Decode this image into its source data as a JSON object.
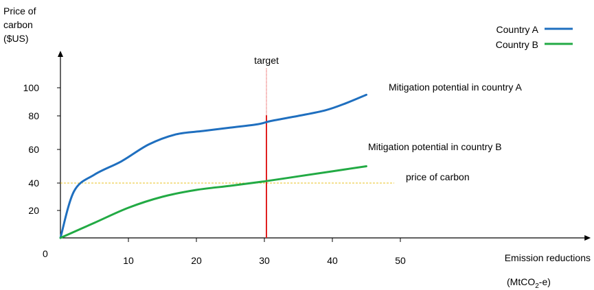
{
  "chart_data": {
    "type": "line",
    "ylabel": [
      "Price of",
      "carbon",
      "($US)"
    ],
    "xlabel": "Emission reductions",
    "xunit_prefix": "(MtCO",
    "xunit_sub": "2",
    "xunit_suffix": "-e)",
    "origin_label": "0",
    "xticks": [
      10,
      20,
      30,
      40,
      50
    ],
    "yticks": [
      20,
      40,
      60,
      80,
      100
    ],
    "xlim": [
      0,
      78
    ],
    "grid": false,
    "legend": "top-right",
    "series": [
      {
        "name": "Country A",
        "color": "#1f6fbf",
        "x": [
          0,
          2,
          5,
          9,
          13,
          17,
          21,
          25,
          29,
          31,
          35,
          39,
          42,
          45
        ],
        "y": [
          0,
          34,
          45,
          53,
          63,
          69,
          71,
          73,
          75,
          77,
          80,
          84,
          89,
          95
        ],
        "annotation": "Mitigation potential in country A"
      },
      {
        "name": "Country B",
        "color": "#22aa44",
        "x": [
          0,
          5,
          10,
          15,
          20,
          25,
          30,
          35,
          40,
          45
        ],
        "y": [
          0,
          11,
          22,
          30,
          35,
          38,
          41,
          44,
          47,
          50
        ],
        "annotation": "Mitigation potential in country B"
      }
    ],
    "target": {
      "label": "target",
      "x": 30,
      "color": "#e02020"
    },
    "price_line": {
      "label": "price of carbon",
      "y": 40,
      "color": "#e8c020"
    }
  }
}
